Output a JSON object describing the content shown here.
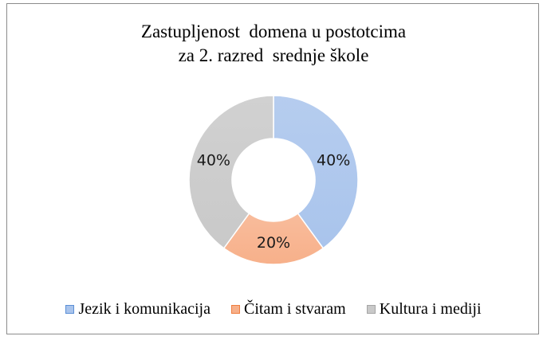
{
  "chart_data": {
    "type": "pie",
    "donut": true,
    "title_lines": [
      "Zastupljenost  domena u postotcima",
      "za 2. razred  srednje škole"
    ],
    "categories": [
      "Jezik i komunikacija",
      "Čitam i stvaram",
      "Kultura i mediji"
    ],
    "values": [
      40,
      20,
      40
    ],
    "data_labels": [
      "40%",
      "20%",
      "40%"
    ],
    "colors": {
      "fill": [
        "#a9c4ec",
        "#f7b08a",
        "#c9c9c9"
      ],
      "stroke": [
        "#5b8fd6",
        "#ef7d3e",
        "#a5a5a5"
      ]
    },
    "legend_position": "bottom"
  }
}
